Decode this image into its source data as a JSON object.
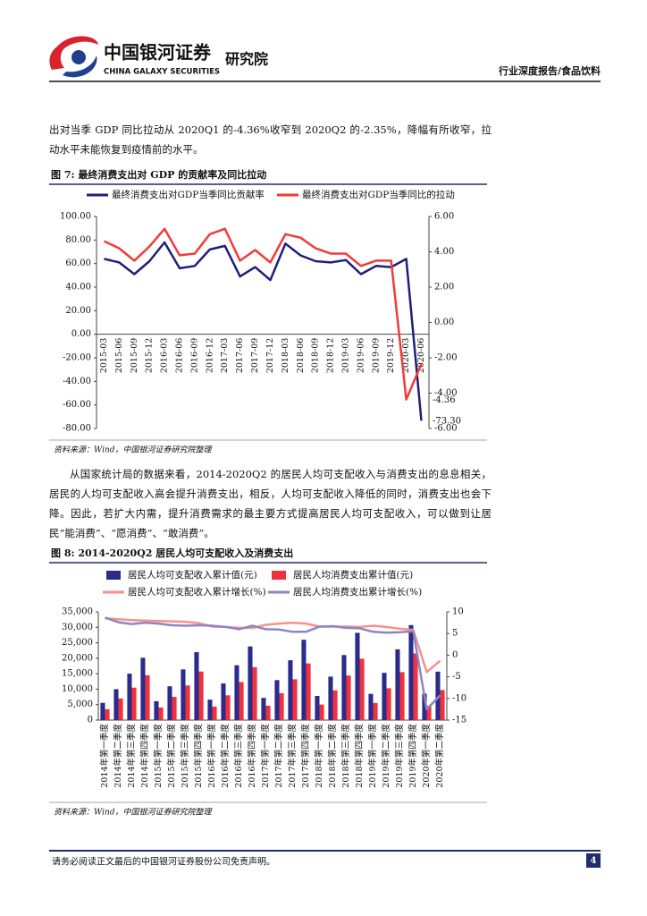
{
  "header": {
    "logo_cn": "中国银河证券",
    "logo_en": "CHINA GALAXY SECURITIES",
    "institute": "研究院",
    "report_type": "行业深度报告/食品饮料"
  },
  "body": {
    "paragraphs": [
      "出对当季 GDP 同比拉动从 2020Q1 的-4.36%收窄到 2020Q2 的-2.35%，降幅有所收窄，拉动水平未能恢复到疫情前的水平。",
      "从国家统计局的数据来看，2014-2020Q2 的居民人均可支配收入与消费支出的息息相关，居民的人均可支配收入高会提升消费支出，相反，人均可支配收入降低的同时，消费支出也会下降。因此，若扩大内需，提升消费需求的最主要方式提高居民人均可支配收入，可以做到让居民“能消费”、“愿消费”、“敢消费”。"
    ]
  },
  "chart_data": [
    {
      "type": "line",
      "title": "图  7: 最终消费支出对 GDP 的贡献率及同比拉动",
      "source": "资料来源：Wind，中国银河证券研究院整理",
      "categories": [
        "2015-03",
        "2015-06",
        "2015-09",
        "2015-12",
        "2016-03",
        "2016-06",
        "2016-09",
        "2016-12",
        "2017-03",
        "2017-06",
        "2017-09",
        "2017-12",
        "2018-03",
        "2018-06",
        "2018-09",
        "2018-12",
        "2019-03",
        "2019-06",
        "2019-09",
        "2019-12",
        "2020-03",
        "2020-06"
      ],
      "series": [
        {
          "name": "最终消费支出对GDP当季同比贡献率",
          "color": "#1f1f7a",
          "axis": "y",
          "values": [
            64,
            61,
            51,
            62,
            78,
            56,
            58,
            72,
            75,
            49,
            57,
            46,
            77,
            67,
            62,
            61,
            63,
            51,
            58,
            57,
            64,
            -73.3
          ],
          "value_labels": [
            null,
            null,
            null,
            null,
            null,
            null,
            null,
            null,
            null,
            null,
            null,
            null,
            null,
            null,
            null,
            null,
            null,
            null,
            null,
            null,
            null,
            "-73.30"
          ]
        },
        {
          "name": "最终消费支出对GDP当季同比的拉动",
          "color": "#f23a3a",
          "axis": "y2",
          "values": [
            4.6,
            4.2,
            3.5,
            4.3,
            5.3,
            3.8,
            3.9,
            5.0,
            5.3,
            3.5,
            4.1,
            3.4,
            5.0,
            4.8,
            4.2,
            3.9,
            3.9,
            3.2,
            3.5,
            3.5,
            -4.36,
            -2.35
          ],
          "value_labels": [
            null,
            null,
            null,
            null,
            null,
            null,
            null,
            null,
            null,
            null,
            null,
            null,
            null,
            null,
            null,
            null,
            null,
            null,
            null,
            null,
            "-4.36",
            null
          ]
        }
      ],
      "ylim": [
        -80,
        100
      ],
      "yticks": [
        {
          "value": -80,
          "label": "-80.00"
        },
        {
          "value": -60,
          "label": "-60.00"
        },
        {
          "value": -40,
          "label": "-40.00"
        },
        {
          "value": -20,
          "label": "-20.00"
        },
        {
          "value": 0,
          "label": "0.00"
        },
        {
          "value": 20,
          "label": "20.00"
        },
        {
          "value": 40,
          "label": "40.00"
        },
        {
          "value": 60,
          "label": "60.00"
        },
        {
          "value": 80,
          "label": "80.00"
        },
        {
          "value": 100,
          "label": "100.00"
        }
      ],
      "y2lim": [
        -6,
        6
      ],
      "y2ticks": [
        {
          "value": -6,
          "label": "-6.00"
        },
        {
          "value": -4,
          "label": "-4.00"
        },
        {
          "value": -2,
          "label": "-2.00"
        },
        {
          "value": 0,
          "label": "0.00"
        },
        {
          "value": 2,
          "label": "2.00"
        },
        {
          "value": 4,
          "label": "4.00"
        },
        {
          "value": 6,
          "label": "6.00"
        }
      ],
      "grid": false,
      "legend": "top"
    },
    {
      "type": "bar",
      "title": "图  8: 2014-2020Q2 居民人均可支配收入及消费支出",
      "source": "资料来源：Wind，中国银河证券研究院整理",
      "categories": [
        "2014年第一季度",
        "2014年第二季度",
        "2014年第三季度",
        "2014年第四季度",
        "2015年第一季度",
        "2015年第二季度",
        "2015年第三季度",
        "2015年第四季度",
        "2016年第一季度",
        "2016年第二季度",
        "2016年第三季度",
        "2016年第四季度",
        "2017年第一季度",
        "2017年第二季度",
        "2017年第三季度",
        "2017年第四季度",
        "2018年第一季度",
        "2018年第二季度",
        "2018年第三季度",
        "2018年第四季度",
        "2019年第一季度",
        "2019年第二季度",
        "2019年第三季度",
        "2019年第四季度",
        "2020年第一季度",
        "2020年第二季度"
      ],
      "series": [
        {
          "name": "居民人均可支配收入累计值(元)",
          "type": "bar",
          "color": "#2b2b8c",
          "axis": "y",
          "values": [
            5562,
            10013,
            15020,
            20167,
            6110,
            10931,
            16384,
            21966,
            6619,
            11874,
            17735,
            23821,
            7184,
            12932,
            19342,
            25974,
            7815,
            14063,
            21035,
            28228,
            8493,
            15294,
            22882,
            30733,
            8561,
            15666
          ]
        },
        {
          "name": "居民人均消费支出累计值(元)",
          "type": "bar",
          "color": "#f0323c",
          "axis": "y",
          "values": [
            3500,
            7000,
            10500,
            14491,
            4079,
            7500,
            11200,
            15712,
            4361,
            8000,
            12300,
            17111,
            4659,
            8700,
            13200,
            18322,
            5019,
            9600,
            14400,
            19853,
            5538,
            10300,
            15500,
            21559,
            4627,
            9718
          ]
        },
        {
          "name": "居民人均可支配收入累计增长(%)",
          "type": "line",
          "color": "#f7908f",
          "axis": "y2",
          "values": [
            8.5,
            8.3,
            8.1,
            8.0,
            7.9,
            7.8,
            7.7,
            7.4,
            6.6,
            6.5,
            6.3,
            6.3,
            7.0,
            7.3,
            7.5,
            7.3,
            6.6,
            6.6,
            6.6,
            6.5,
            6.8,
            6.5,
            6.1,
            5.8,
            -3.9,
            -1.3
          ]
        },
        {
          "name": "居民人均消费支出累计增长(%)",
          "type": "line",
          "color": "#8c86c2",
          "axis": "y2",
          "values": [
            8.7,
            7.6,
            7.2,
            7.5,
            7.3,
            6.9,
            6.8,
            6.9,
            6.8,
            6.5,
            6.0,
            6.8,
            6.0,
            5.9,
            5.4,
            5.4,
            6.6,
            6.7,
            6.3,
            6.2,
            5.4,
            5.2,
            5.3,
            5.5,
            -12.5,
            -9.3
          ]
        }
      ],
      "ylim": [
        0,
        35000
      ],
      "yticks": [
        0,
        {
          "value": 5000,
          "label": "5,000"
        },
        {
          "value": 10000,
          "label": "10,000"
        },
        {
          "value": 15000,
          "label": "15,000"
        },
        {
          "value": 20000,
          "label": "20,000"
        },
        {
          "value": 25000,
          "label": "25,000"
        },
        {
          "value": 30000,
          "label": "30,000"
        },
        {
          "value": 35000,
          "label": "35,000"
        }
      ],
      "y2lim": [
        -15,
        10
      ],
      "y2ticks": [
        -15,
        -10,
        -5,
        0,
        5,
        10
      ],
      "grid": false,
      "legend": "top"
    }
  ],
  "footer": {
    "disclaimer": "请务必阅读正文最后的中国银河证券股份公司免责声明。",
    "page_number": 4
  }
}
